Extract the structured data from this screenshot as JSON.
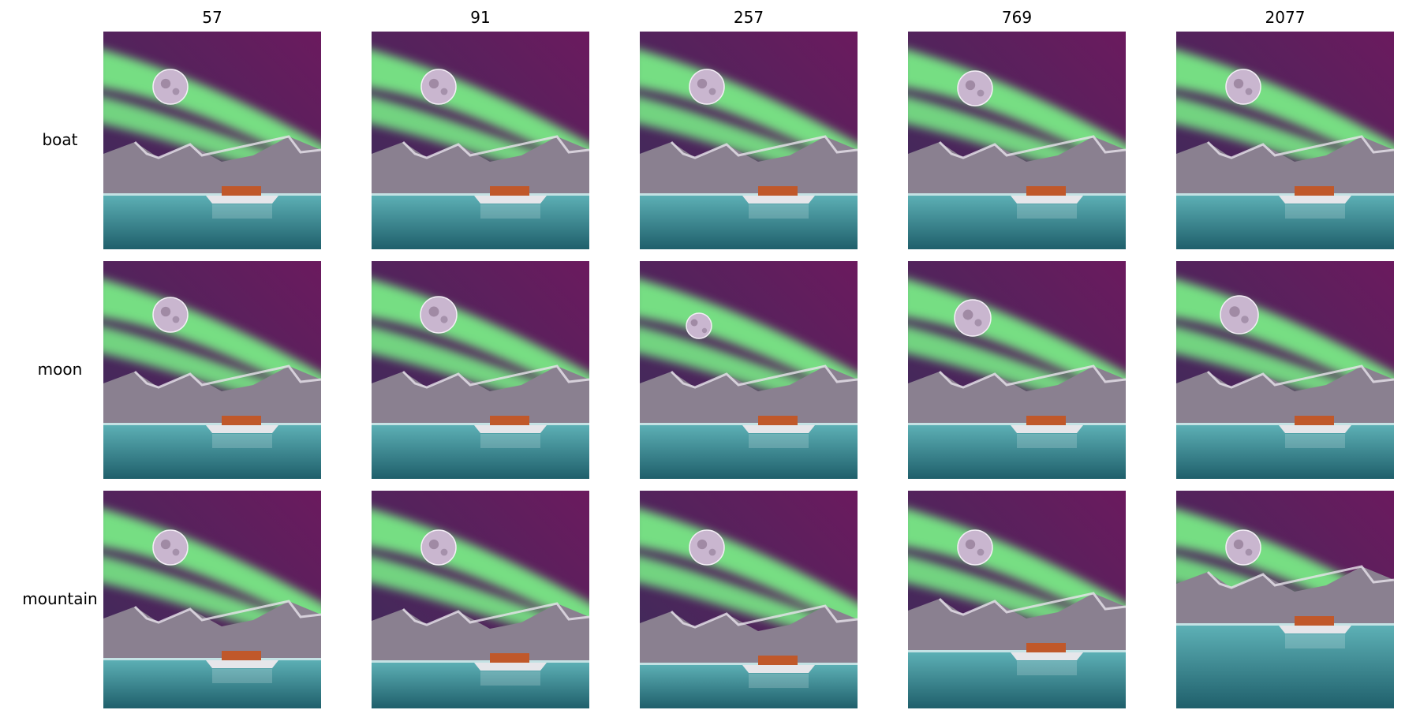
{
  "columns": [
    "57",
    "91",
    "257",
    "769",
    "2077"
  ],
  "rows": [
    "boat",
    "moon",
    "mountain"
  ],
  "tiles": [
    [
      {
        "depicts": "aurora-moon-mountain-boat"
      },
      {
        "depicts": "aurora-moon-mountain-boat"
      },
      {
        "depicts": "aurora-moon-mountain-boat"
      },
      {
        "depicts": "aurora-moon-mountain-boat"
      },
      {
        "depicts": "aurora-moon-mountain-boat"
      }
    ],
    [
      {
        "depicts": "aurora-moon-mountain-boat"
      },
      {
        "depicts": "aurora-moon-mountain-boat"
      },
      {
        "depicts": "aurora-moon-mountain-boat"
      },
      {
        "depicts": "aurora-moon-mountain-boat"
      },
      {
        "depicts": "aurora-moon-mountain-boat"
      }
    ],
    [
      {
        "depicts": "aurora-moon-mountain-boat"
      },
      {
        "depicts": "aurora-moon-mountain-boat"
      },
      {
        "depicts": "aurora-moon-mountain-boat"
      },
      {
        "depicts": "aurora-moon-mountain-boat"
      },
      {
        "depicts": "aurora-moon-mountain-boat"
      }
    ]
  ],
  "colors": {
    "sky_top": "#6b1a5e",
    "sky_bottom": "#3a2d5a",
    "aurora": "#7dff8a",
    "moon": "#c9b6cf",
    "mountain": "#8a8090",
    "snow": "#e8e4ec",
    "water": "#5fb3b8",
    "water_dark": "#1f5f6b",
    "boat_hull": "#e6e6ea",
    "boat_cabin": "#c0582a"
  }
}
